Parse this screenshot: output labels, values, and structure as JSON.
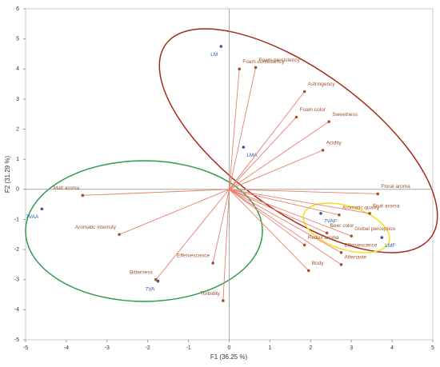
{
  "chart_data": {
    "type": "biplot",
    "xlabel": "F1 (36.25 %)",
    "ylabel": "F2 (31.29 %)",
    "xlim": [
      -5,
      5
    ],
    "ylim": [
      -5,
      6
    ],
    "xticks": [
      -5,
      -4,
      -3,
      -2,
      -1,
      0,
      1,
      2,
      3,
      4,
      5
    ],
    "yticks": [
      -5,
      -4,
      -3,
      -2,
      -1,
      0,
      1,
      2,
      3,
      4,
      5,
      6
    ],
    "series": [
      {
        "color": "#2f5ca8",
        "labels": [
          "LM",
          "LMA",
          "7VAA",
          "7VA",
          "7VAF",
          "LMF"
        ],
        "x": [
          -0.2,
          0.35,
          -4.6,
          -1.75,
          2.25,
          3.75
        ],
        "y": [
          4.75,
          1.4,
          -0.65,
          -3.05,
          -0.8,
          -1.6
        ]
      },
      {
        "color": "#a0522d",
        "vectors": true,
        "labels": [
          "Foam consistency",
          "Foam persistency",
          "Astringency",
          "Foam color",
          "Sweetness",
          "Acidity",
          "Floral aroma",
          "Fruit aroma",
          "Aromatic quality",
          "Global perception",
          "Beer color",
          "Effervescence",
          "Aftertaste",
          "Body",
          "Redox aroma",
          "Effervescence",
          "Turbidity",
          "Bitterness",
          "Aromatic intensity",
          "Malt aroma"
        ],
        "x": [
          0.25,
          0.65,
          1.85,
          1.65,
          2.45,
          2.3,
          3.65,
          3.45,
          2.7,
          3.0,
          2.4,
          2.75,
          2.75,
          1.95,
          1.85,
          -0.4,
          -0.15,
          -1.8,
          -2.7,
          -3.6
        ],
        "y": [
          4.0,
          4.05,
          3.25,
          2.4,
          2.25,
          1.3,
          -0.15,
          -0.8,
          -0.85,
          -1.55,
          -1.45,
          -2.1,
          -2.5,
          -2.7,
          -1.85,
          -2.45,
          -3.7,
          -3.0,
          -1.5,
          -0.2
        ]
      }
    ]
  }
}
